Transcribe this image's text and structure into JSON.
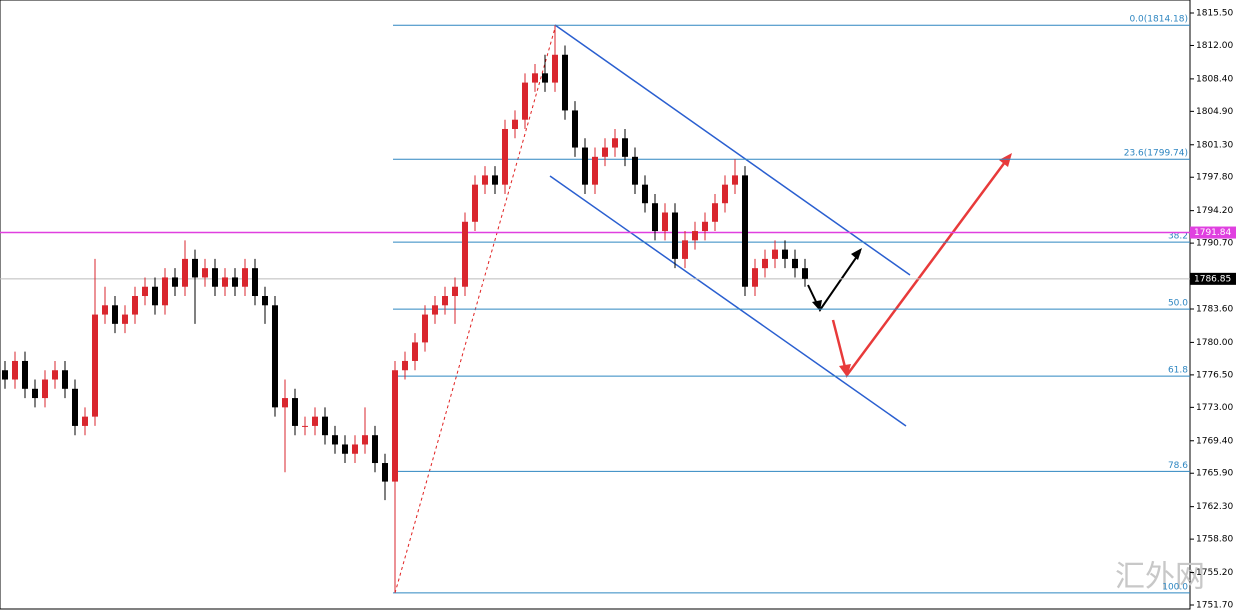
{
  "chart_data": {
    "type": "candlestick",
    "up_color": "#d9262e",
    "down_color": "#000000",
    "open": [
      1777,
      1776,
      1778,
      1775,
      1774,
      1776,
      1777,
      1775,
      1771,
      1772,
      1783,
      1784,
      1782,
      1783,
      1785,
      1786,
      1784,
      1787,
      1786,
      1789,
      1787,
      1788,
      1786,
      1787,
      1786,
      1788,
      1785,
      1784,
      1773,
      1774,
      1771,
      1771,
      1772,
      1770,
      1769,
      1768,
      1769,
      1770,
      1767,
      1765,
      1777,
      1778,
      1780,
      1783,
      1784,
      1785,
      1786,
      1793,
      1797,
      1798,
      1797,
      1803,
      1804,
      1808,
      1809,
      1808,
      1811,
      1805,
      1801,
      1797,
      1800,
      1801,
      1802,
      1800,
      1797,
      1795,
      1792,
      1794,
      1789,
      1791,
      1792,
      1793,
      1795,
      1797,
      1798,
      1786,
      1788,
      1789,
      1790,
      1789,
      1788
    ],
    "high": [
      1778,
      1779,
      1779,
      1776,
      1777,
      1778,
      1778,
      1776,
      1773,
      1789,
      1786,
      1785,
      1784,
      1786,
      1787,
      1787,
      1788,
      1788,
      1791,
      1790,
      1789,
      1789,
      1788,
      1788,
      1789,
      1789,
      1786,
      1785,
      1776,
      1775,
      1772,
      1773,
      1773,
      1771,
      1770,
      1770,
      1773,
      1771,
      1768,
      1778,
      1779,
      1781,
      1784,
      1785,
      1786,
      1787,
      1794,
      1798,
      1799,
      1799,
      1804,
      1805,
      1809,
      1810,
      1811,
      1814.18,
      1812,
      1806,
      1802,
      1801,
      1802,
      1803,
      1803,
      1801,
      1798,
      1796,
      1795,
      1795,
      1792,
      1793,
      1794,
      1796,
      1798,
      1799.74,
      1799,
      1789,
      1790,
      1791,
      1791,
      1790,
      1789
    ],
    "low": [
      1775,
      1775,
      1774,
      1773,
      1773,
      1775,
      1774,
      1770,
      1770,
      1771,
      1782,
      1781,
      1781,
      1782,
      1784,
      1783,
      1783,
      1785,
      1785,
      1782,
      1786,
      1785,
      1785,
      1785,
      1785,
      1784,
      1782,
      1772,
      1766,
      1770,
      1770,
      1770,
      1769,
      1768,
      1767,
      1767,
      1768,
      1766,
      1763,
      1753,
      1776,
      1777,
      1779,
      1782,
      1783,
      1782,
      1785,
      1792,
      1796,
      1796,
      1796,
      1802,
      1803,
      1807,
      1807,
      1807,
      1804,
      1800,
      1796,
      1796,
      1799,
      1800,
      1799,
      1796,
      1794,
      1791,
      1791,
      1788,
      1788,
      1790,
      1791,
      1792,
      1794,
      1796,
      1785,
      1785,
      1787,
      1788,
      1788,
      1787,
      1786
    ],
    "close": [
      1776,
      1778,
      1775,
      1774,
      1776,
      1777,
      1775,
      1771,
      1772,
      1783,
      1784,
      1782,
      1783,
      1785,
      1786,
      1784,
      1787,
      1786,
      1789,
      1787,
      1788,
      1786,
      1787,
      1786,
      1788,
      1785,
      1784,
      1773,
      1774,
      1771,
      1771,
      1772,
      1770,
      1769,
      1768,
      1769,
      1770,
      1767,
      1765,
      1777,
      1778,
      1780,
      1783,
      1784,
      1785,
      1786,
      1793,
      1797,
      1798,
      1797,
      1803,
      1804,
      1808,
      1809,
      1808,
      1811,
      1805,
      1801,
      1797,
      1800,
      1801,
      1802,
      1800,
      1797,
      1795,
      1792,
      1794,
      1789,
      1791,
      1792,
      1793,
      1795,
      1797,
      1798,
      1786,
      1788,
      1789,
      1790,
      1789,
      1788,
      1786.85
    ],
    "ylim": [
      1751.7,
      1815.5
    ],
    "yticks": [
      {
        "value": 1815.5,
        "label": "1815.50"
      },
      {
        "value": 1812,
        "label": "1812.00"
      },
      {
        "value": 1808.4,
        "label": "1808.40"
      },
      {
        "value": 1804.9,
        "label": "1804.90"
      },
      {
        "value": 1801.3,
        "label": "1801.30"
      },
      {
        "value": 1797.8,
        "label": "1797.80"
      },
      {
        "value": 1794.2,
        "label": "1794.20"
      },
      {
        "value": 1790.7,
        "label": "1790.70"
      },
      {
        "value": 1783.6,
        "label": "1783.60"
      },
      {
        "value": 1780,
        "label": "1780.00"
      },
      {
        "value": 1776.5,
        "label": "1776.50"
      },
      {
        "value": 1773,
        "label": "1773.00"
      },
      {
        "value": 1769.4,
        "label": "1769.40"
      },
      {
        "value": 1765.9,
        "label": "1765.90"
      },
      {
        "value": 1762.3,
        "label": "1762.30"
      },
      {
        "value": 1758.8,
        "label": "1758.80"
      },
      {
        "value": 1755.2,
        "label": "1755.20"
      },
      {
        "value": 1751.7,
        "label": "1751.70"
      }
    ],
    "fib_levels": [
      {
        "value": 1814.18,
        "label": "0.0(1814.18)"
      },
      {
        "value": 1799.74,
        "label": "23.6(1799.74)"
      },
      {
        "value": 1790.81,
        "label": "38.2"
      },
      {
        "value": 1783.59,
        "label": "50.0"
      },
      {
        "value": 1776.37,
        "label": "61.8"
      },
      {
        "value": 1766.1,
        "label": "78.6"
      },
      {
        "value": 1753,
        "label": "100.0"
      }
    ],
    "fib_color": "#2e86c1",
    "price_lines": [
      {
        "value": 1791.84,
        "color": "#e040e0",
        "text_color": "#ffffff"
      },
      {
        "value": 1786.85,
        "color": "#000000",
        "text_color": "#ffffff"
      }
    ],
    "watermark": "汇外网"
  }
}
